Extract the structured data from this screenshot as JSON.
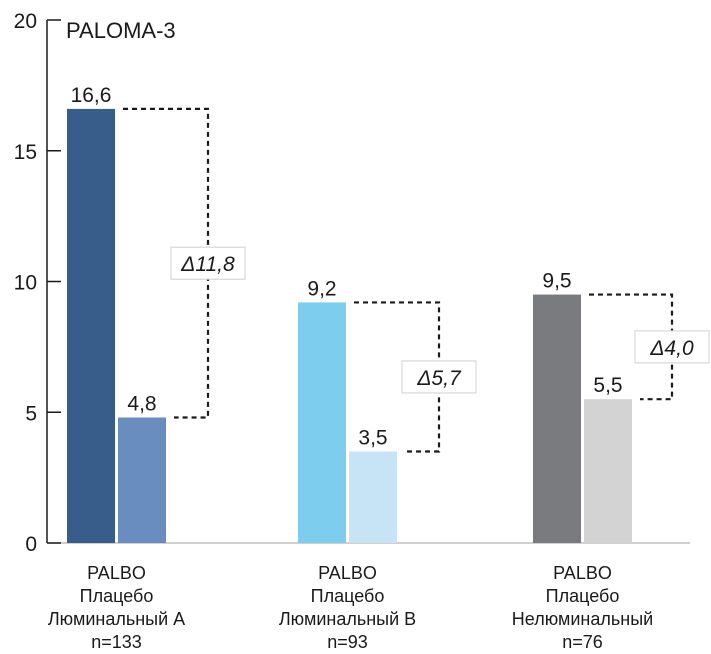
{
  "chart_data": {
    "type": "bar",
    "title": "PALOMA-3",
    "ylim": [
      0,
      20
    ],
    "yticks": [
      0,
      5,
      10,
      15,
      20
    ],
    "grid": false,
    "groups": [
      {
        "labels": [
          "PALBO",
          "Плацебо",
          "Люминальный А",
          "n=133"
        ],
        "bars": [
          {
            "label": "16,6",
            "value": 16.6,
            "color": "#385d8a"
          },
          {
            "label": "4,8",
            "value": 4.8,
            "color": "#6a8dbf"
          }
        ],
        "delta": "Δ11,8"
      },
      {
        "labels": [
          "PALBO",
          "Плацебо",
          "Люминальный В",
          "n=93"
        ],
        "bars": [
          {
            "label": "9,2",
            "value": 9.2,
            "color": "#7ccdee"
          },
          {
            "label": "3,5",
            "value": 3.5,
            "color": "#c7e4f6"
          }
        ],
        "delta": "Δ5,7"
      },
      {
        "labels": [
          "PALBO",
          "Плацебо",
          "Нелюминальный",
          "n=76"
        ],
        "bars": [
          {
            "label": "9,5",
            "value": 9.5,
            "color": "#7a7b7e"
          },
          {
            "label": "5,5",
            "value": 5.5,
            "color": "#d3d3d3"
          }
        ],
        "delta": "Δ4,0"
      }
    ]
  }
}
